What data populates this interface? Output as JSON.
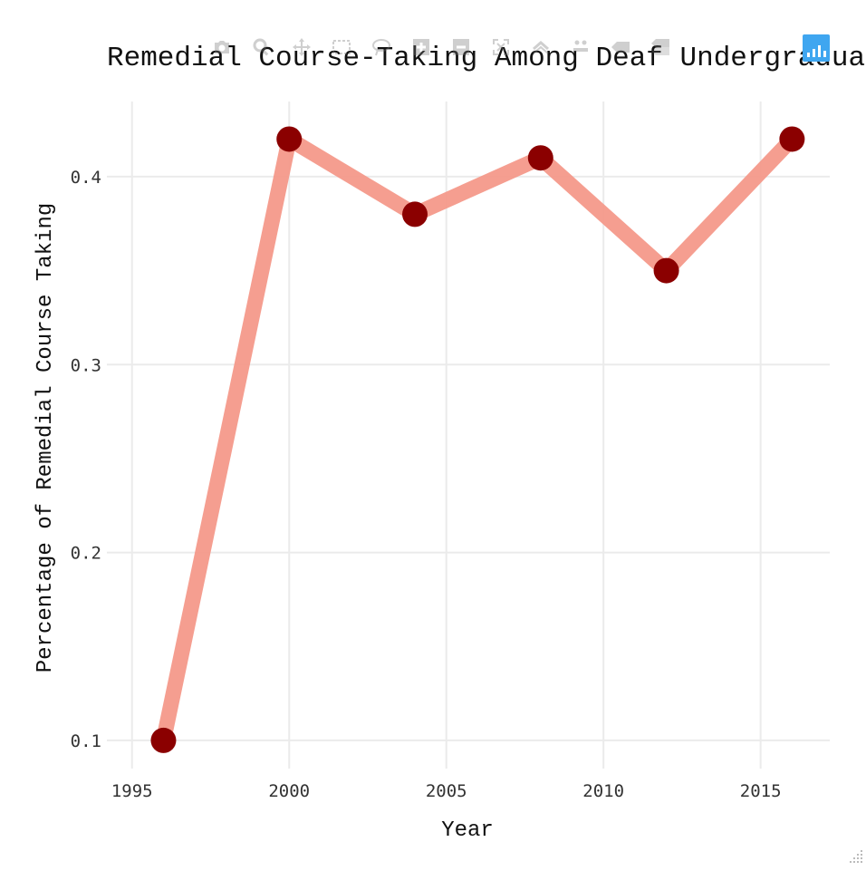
{
  "chart_data": {
    "type": "line",
    "title": "Remedial Course-Taking Among Deaf Undergraduates",
    "xlabel": "Year",
    "ylabel": "Percentage of Remedial Course Taking",
    "x": [
      1996,
      2000,
      2004,
      2008,
      2012,
      2016
    ],
    "series": [
      {
        "values": [
          0.1,
          0.42,
          0.38,
          0.41,
          0.35,
          0.42
        ]
      }
    ],
    "xlim": [
      1994.2,
      2017.2
    ],
    "ylim": [
      0.085,
      0.44
    ],
    "x_ticks": [
      1995,
      2000,
      2005,
      2010,
      2015
    ],
    "x_tick_labels": [
      "1995",
      "2000",
      "2005",
      "2010",
      "2015"
    ],
    "y_ticks": [
      0.1,
      0.2,
      0.3,
      0.4
    ],
    "y_tick_labels": [
      "0.1",
      "0.2",
      "0.3",
      "0.4"
    ],
    "grid": true,
    "legend": "none",
    "line_color": "#f4998a",
    "marker_color": "#8b0000"
  },
  "modebar": {
    "buttons": [
      "camera-icon",
      "zoom-icon",
      "pan-icon",
      "box-select-icon",
      "lasso-icon",
      "zoom-in-icon",
      "zoom-out-icon",
      "autoscale-icon",
      "reset-axes-icon",
      "spike-lines-icon",
      "hover-closest-icon",
      "hover-compare-icon"
    ],
    "logo": "plotly-logo-icon"
  }
}
